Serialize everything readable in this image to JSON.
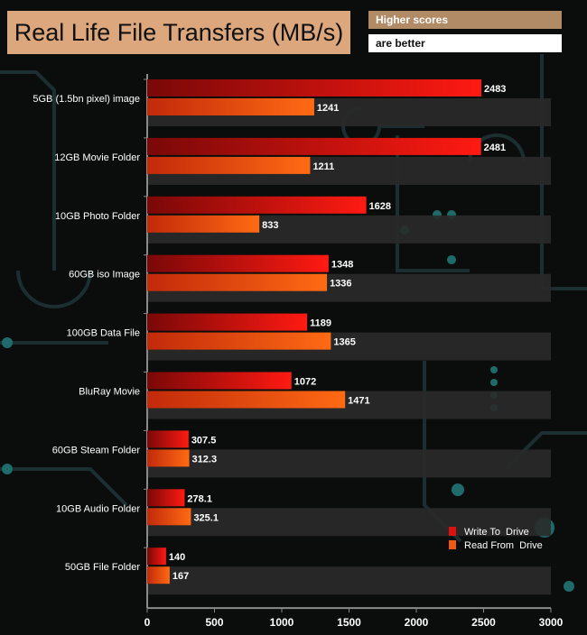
{
  "header": {
    "title": "Real Life File Transfers (MB/s)",
    "note_line1": "Higher scores",
    "note_line2": "are better"
  },
  "colors": {
    "write": "#e01010",
    "read": "#f05a10",
    "band": "#2a2a2a",
    "axis": "#8a8a8a"
  },
  "chart_data": {
    "type": "bar",
    "orientation": "horizontal",
    "title": "Real Life File Transfers (MB/s)",
    "categories": [
      "5GB (1.5bn pixel) image",
      "12GB Movie Folder",
      "10GB Photo Folder",
      "60GB iso Image",
      "100GB Data File",
      "BluRay Movie",
      "60GB Steam Folder",
      "10GB Audio Folder",
      "50GB File Folder"
    ],
    "series": [
      {
        "name": "Write To  Drive",
        "values": [
          2483,
          2481,
          1628,
          1348,
          1189,
          1072,
          307.5,
          278.1,
          140
        ],
        "labels": [
          "2483",
          "2481",
          "1628",
          "1348",
          "1189",
          "1072",
          "307.5",
          "278.1",
          "140"
        ]
      },
      {
        "name": "Read From  Drive",
        "values": [
          1241,
          1211,
          833,
          1336,
          1365,
          1471,
          312.3,
          325.1,
          167
        ],
        "labels": [
          "1241",
          "1211",
          "833",
          "1336",
          "1365",
          "1471",
          "312.3",
          "325.1",
          "167"
        ]
      }
    ],
    "xlim": [
      0,
      3000
    ],
    "xticks": [
      "0",
      "500",
      "1000",
      "1500",
      "2000",
      "2500",
      "3000"
    ],
    "legend_position": "bottom-right",
    "note": "Higher scores are better"
  }
}
